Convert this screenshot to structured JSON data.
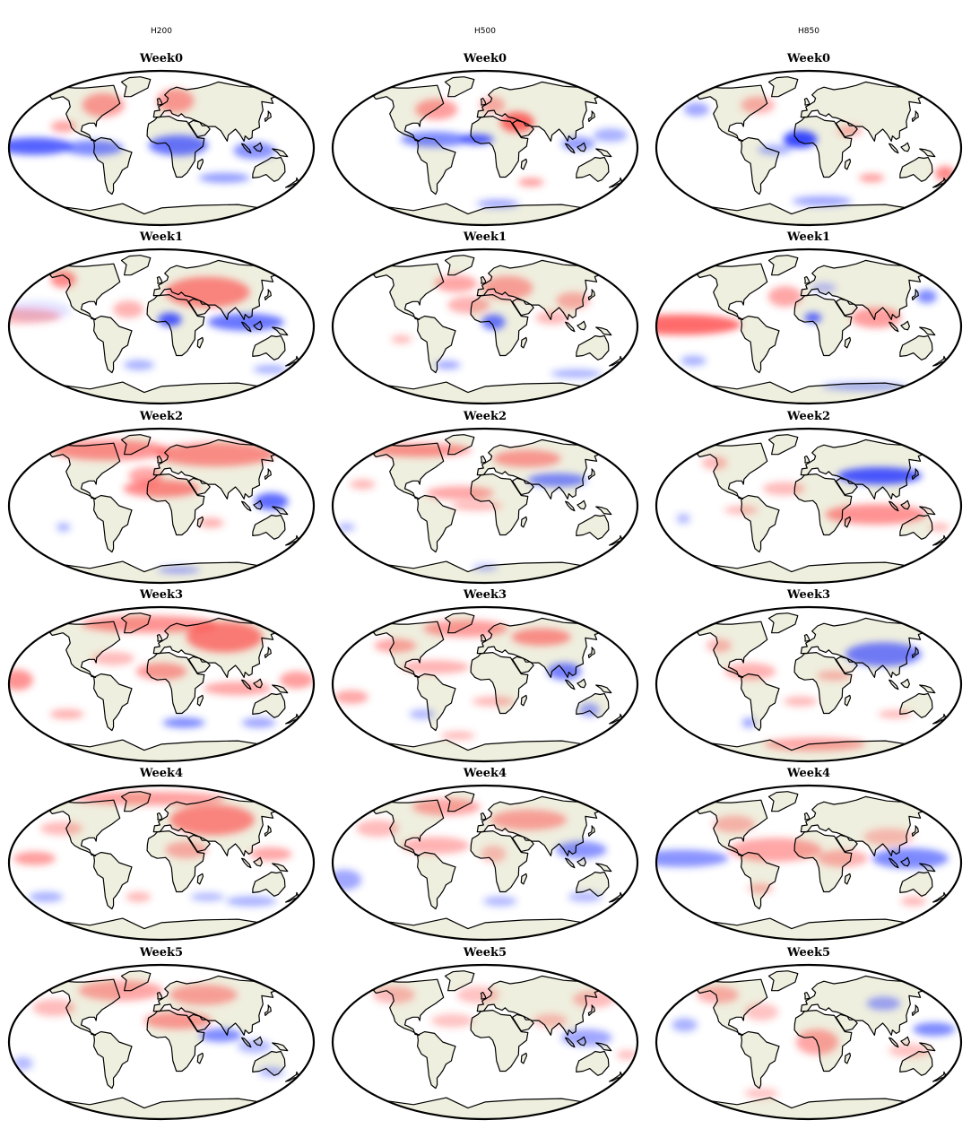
{
  "figure": {
    "columns": [
      {
        "label": "H200"
      },
      {
        "label": "H500"
      },
      {
        "label": "H850"
      }
    ],
    "rows": [
      {
        "label": "Week0"
      },
      {
        "label": "Week1"
      },
      {
        "label": "Week2"
      },
      {
        "label": "Week3"
      },
      {
        "label": "Week4"
      },
      {
        "label": "Week5"
      }
    ],
    "colors": {
      "land": "#efefdf",
      "ocean": "#ffffff",
      "coastline": "#000000",
      "positive_anomaly": "#ff3b3b",
      "negative_anomaly": "#2a3bff"
    },
    "projection": "Robinson",
    "map_extent": "global"
  }
}
